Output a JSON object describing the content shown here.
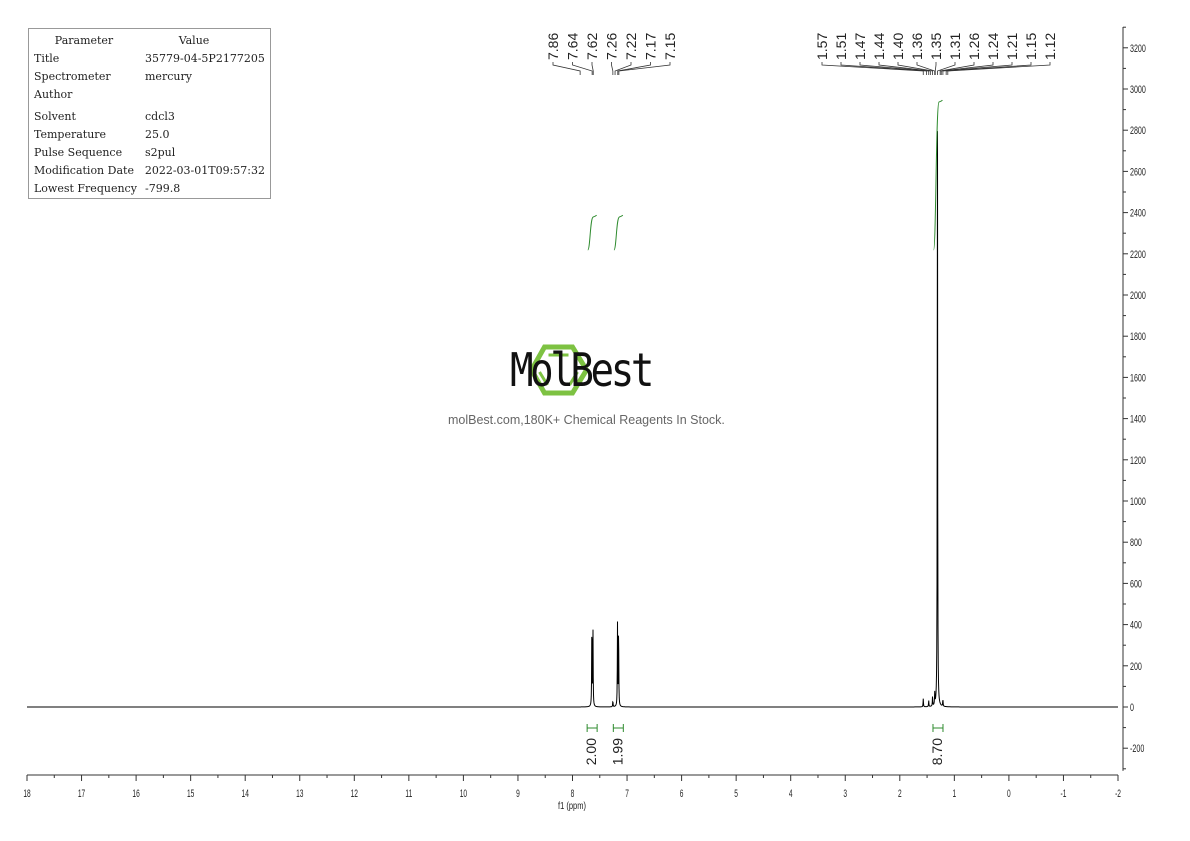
{
  "parameters": {
    "header": {
      "key": "Parameter",
      "value": "Value"
    },
    "rows": [
      {
        "key": "Title",
        "value": "35779-04-5P2177205"
      },
      {
        "key": "Spectrometer",
        "value": "mercury"
      },
      {
        "key": "Author",
        "value": ""
      },
      {
        "key": "Solvent",
        "value": "cdcl3"
      },
      {
        "key": "Temperature",
        "value": "25.0"
      },
      {
        "key": "Pulse Sequence",
        "value": "s2pul"
      },
      {
        "key": "Modification Date",
        "value": "2022-03-01T09:57:32"
      },
      {
        "key": "Lowest Frequency",
        "value": "-799.8"
      }
    ]
  },
  "watermark": {
    "brand": "MolBest",
    "tagline": "molBest.com,180K+ Chemical Reagents In Stock.",
    "color": "#7dc242"
  },
  "chart_data": {
    "type": "line",
    "xlabel": "f1 (ppm)",
    "ylabel": "",
    "xlim": [
      18,
      -2
    ],
    "ylim": [
      -300,
      3300
    ],
    "x_reversed": true,
    "xticks": [
      18,
      17,
      16,
      15,
      14,
      13,
      12,
      11,
      10,
      9,
      8,
      7,
      6,
      5,
      4,
      3,
      2,
      1,
      0,
      -1,
      -2
    ],
    "yticks": [
      -200,
      0,
      200,
      400,
      600,
      800,
      1000,
      1200,
      1400,
      1600,
      1800,
      2000,
      2200,
      2400,
      2600,
      2800,
      3000,
      3200
    ],
    "grid": false,
    "line_color": "#000000",
    "integral_color": "#2e8b2e",
    "peak_labels_group1": [
      "7.86",
      "7.64",
      "7.62",
      "7.26",
      "7.22",
      "7.17",
      "7.15"
    ],
    "peak_labels_group2": [
      "1.57",
      "1.51",
      "1.47",
      "1.44",
      "1.40",
      "1.36",
      "1.35",
      "1.31",
      "1.26",
      "1.24",
      "1.21",
      "1.15",
      "1.12"
    ],
    "peaks": [
      {
        "ppm": 7.645,
        "height": 420
      },
      {
        "ppm": 7.625,
        "height": 375
      },
      {
        "ppm": 7.26,
        "height": 30
      },
      {
        "ppm": 7.175,
        "height": 400
      },
      {
        "ppm": 7.155,
        "height": 390
      },
      {
        "ppm": 1.57,
        "height": 40
      },
      {
        "ppm": 1.47,
        "height": 30
      },
      {
        "ppm": 1.4,
        "height": 45
      },
      {
        "ppm": 1.36,
        "height": 60
      },
      {
        "ppm": 1.31,
        "height": 3010
      },
      {
        "ppm": 1.21,
        "height": 35
      }
    ],
    "integrals": [
      {
        "from": 7.72,
        "to": 7.56,
        "value": "2.00"
      },
      {
        "from": 7.24,
        "to": 7.08,
        "value": "1.99"
      },
      {
        "from": 1.38,
        "to": 1.22,
        "value": "8.70"
      }
    ]
  }
}
